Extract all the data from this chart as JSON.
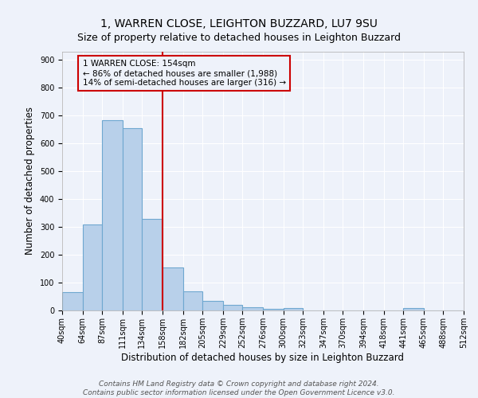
{
  "title": "1, WARREN CLOSE, LEIGHTON BUZZARD, LU7 9SU",
  "subtitle": "Size of property relative to detached houses in Leighton Buzzard",
  "xlabel": "Distribution of detached houses by size in Leighton Buzzard",
  "ylabel": "Number of detached properties",
  "bin_edges": [
    40,
    64,
    87,
    111,
    134,
    158,
    182,
    205,
    229,
    252,
    276,
    300,
    323,
    347,
    370,
    394,
    418,
    441,
    465,
    488,
    512
  ],
  "bar_heights": [
    65,
    310,
    685,
    655,
    330,
    155,
    68,
    35,
    20,
    12,
    5,
    8,
    1,
    0,
    0,
    0,
    0,
    8,
    0,
    0
  ],
  "bar_color": "#b8d0ea",
  "bar_edge_color": "#6fa8d0",
  "vline_x": 158,
  "vline_color": "#cc0000",
  "annotation_box_text": "1 WARREN CLOSE: 154sqm\n← 86% of detached houses are smaller (1,988)\n14% of semi-detached houses are larger (316) →",
  "annotation_box_color": "#cc0000",
  "ylim": [
    0,
    930
  ],
  "yticks": [
    0,
    100,
    200,
    300,
    400,
    500,
    600,
    700,
    800,
    900
  ],
  "tick_labels": [
    "40sqm",
    "64sqm",
    "87sqm",
    "111sqm",
    "134sqm",
    "158sqm",
    "182sqm",
    "205sqm",
    "229sqm",
    "252sqm",
    "276sqm",
    "300sqm",
    "323sqm",
    "347sqm",
    "370sqm",
    "394sqm",
    "418sqm",
    "441sqm",
    "465sqm",
    "488sqm",
    "512sqm"
  ],
  "background_color": "#eef2fa",
  "grid_color": "#ffffff",
  "footer_text": "Contains HM Land Registry data © Crown copyright and database right 2024.\nContains public sector information licensed under the Open Government Licence v3.0.",
  "title_fontsize": 10,
  "subtitle_fontsize": 9,
  "axis_label_fontsize": 8.5,
  "tick_fontsize": 7,
  "footer_fontsize": 6.5,
  "ann_fontsize": 7.5
}
